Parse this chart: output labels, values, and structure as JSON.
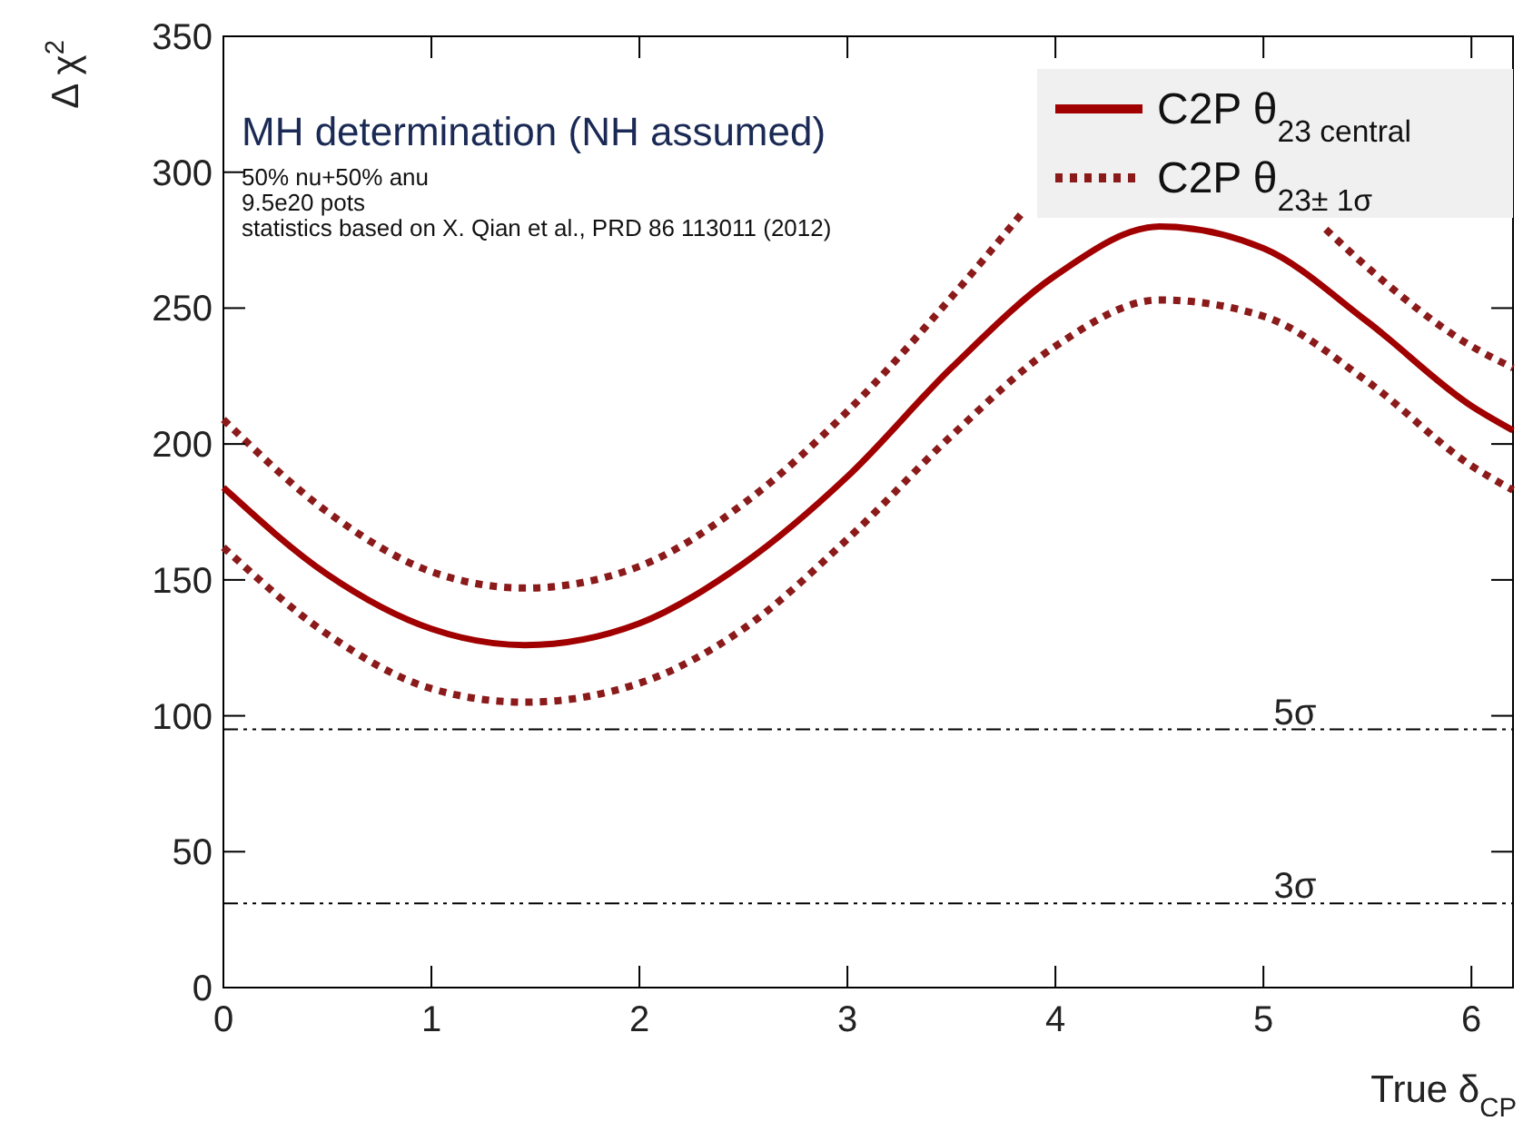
{
  "chart_data": {
    "type": "line",
    "title": "MH determination (NH assumed)",
    "annotations": [
      "50% nu+50% anu",
      "9.5e20 pots",
      "statistics based on X. Qian et al., PRD 86 113011 (2012)"
    ],
    "xlabel": "True δ$_{CP}$",
    "ylabel": "Δ χ$^{2}$",
    "xlim": [
      0,
      6.2
    ],
    "xticks": [
      0,
      1,
      2,
      3,
      4,
      5,
      6
    ],
    "ylim": [
      0,
      350
    ],
    "yticks": [
      0,
      50,
      100,
      150,
      200,
      250,
      300,
      350
    ],
    "grid": false,
    "legend": "top right",
    "series": [
      {
        "name": "C2P θ$_{23 central}$",
        "color": "#a00000",
        "line_style": "solid",
        "x": [
          0,
          0.5,
          1,
          1.45,
          2,
          2.5,
          3,
          3.5,
          4,
          4.5,
          5,
          5.5,
          6,
          6.2
        ],
        "values": [
          184,
          152,
          132,
          126,
          134,
          156,
          188,
          228,
          262,
          280,
          272,
          245,
          214,
          205
        ]
      },
      {
        "name": "C2P θ$_{23± 1σ}$",
        "color": "#8b1a1a",
        "line_style": "dotted",
        "x": [
          0,
          0.5,
          1,
          1.45,
          2,
          2.5,
          3,
          3.5,
          3.84,
          4.2,
          4.6,
          5.0,
          5.3,
          5.5,
          6,
          6.2
        ],
        "values": [
          209,
          175,
          153,
          147,
          155,
          178,
          212,
          254,
          285,
          null,
          null,
          null,
          279,
          265,
          236,
          228
        ]
      },
      {
        "color": "#8b1a1a",
        "line_style": "dotted",
        "x": [
          0,
          0.5,
          1,
          1.45,
          2,
          2.5,
          3,
          3.5,
          4,
          4.5,
          5,
          5.5,
          6,
          6.2
        ],
        "values": [
          162,
          130,
          110,
          105,
          112,
          132,
          165,
          203,
          236,
          253,
          247,
          223,
          192,
          183
        ]
      }
    ],
    "ref_lines": [
      {
        "axis": "y",
        "value": 95,
        "label": "5σ",
        "line_style": "dashed"
      },
      {
        "axis": "y",
        "value": 31,
        "label": "3σ",
        "line_style": "dashed"
      }
    ]
  }
}
